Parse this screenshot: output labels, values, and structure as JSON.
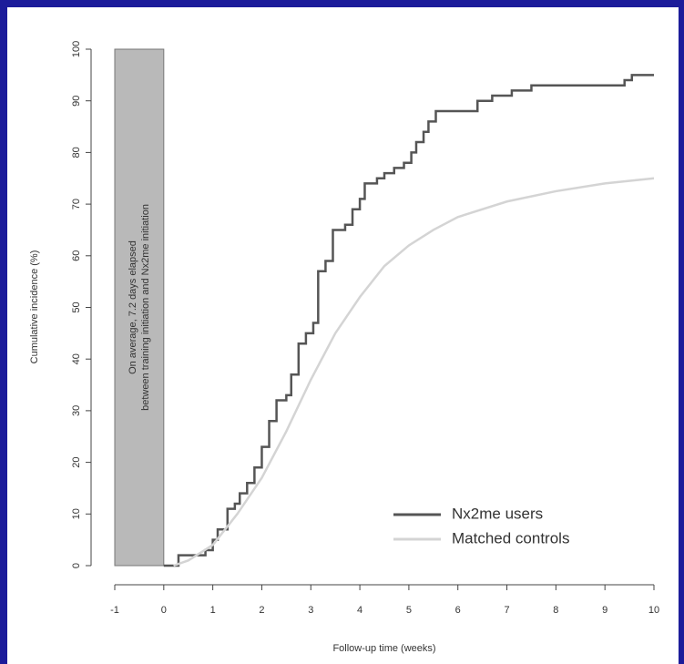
{
  "chart_data": {
    "type": "line",
    "step": true,
    "x_label": "Follow-up time (weeks)",
    "y_label": "Cumulative incidence (%)",
    "annotation": [
      "On average, 7.2 days elapsed",
      "between training initiation and Nx2me initiation"
    ],
    "shaded_x": [
      -1,
      0
    ],
    "shaded_color": "#b9b9b9",
    "xlim": [
      -1,
      10
    ],
    "xticks": [
      -1,
      0,
      1,
      2,
      3,
      4,
      5,
      6,
      7,
      8,
      9,
      10
    ],
    "ylim": [
      0,
      100
    ],
    "yticks": [
      0,
      10,
      20,
      30,
      40,
      50,
      60,
      70,
      80,
      90,
      100
    ],
    "legend": "lower right",
    "series": [
      {
        "name": "Nx2me users",
        "color": "#555555",
        "step": true,
        "x": [
          0,
          0.3,
          0.85,
          1.0,
          1.1,
          1.3,
          1.45,
          1.55,
          1.7,
          1.85,
          2.0,
          2.15,
          2.3,
          2.5,
          2.6,
          2.75,
          2.9,
          3.05,
          3.15,
          3.3,
          3.45,
          3.7,
          3.85,
          4.0,
          4.1,
          4.35,
          4.5,
          4.7,
          4.9,
          5.05,
          5.15,
          5.3,
          5.4,
          5.55,
          6.4,
          6.7,
          7.1,
          7.5,
          9.4,
          9.55,
          10
        ],
        "values": [
          0,
          2,
          3,
          5,
          7,
          11,
          12,
          14,
          16,
          19,
          23,
          28,
          32,
          33,
          37,
          43,
          45,
          47,
          57,
          59,
          65,
          66,
          69,
          71,
          74,
          75,
          76,
          77,
          78,
          80,
          82,
          84,
          86,
          88,
          90,
          91,
          92,
          93,
          94,
          95,
          95
        ]
      },
      {
        "name": "Matched controls",
        "color": "#d4d4d4",
        "step": false,
        "x": [
          0.2,
          0.5,
          1,
          1.5,
          2,
          2.5,
          3,
          3.5,
          4,
          4.5,
          5,
          5.5,
          6,
          7,
          8,
          9,
          10
        ],
        "values": [
          0,
          1,
          4,
          10,
          17,
          26,
          36,
          45,
          52,
          58,
          62,
          65,
          67.5,
          70.5,
          72.5,
          74,
          75
        ]
      }
    ]
  }
}
